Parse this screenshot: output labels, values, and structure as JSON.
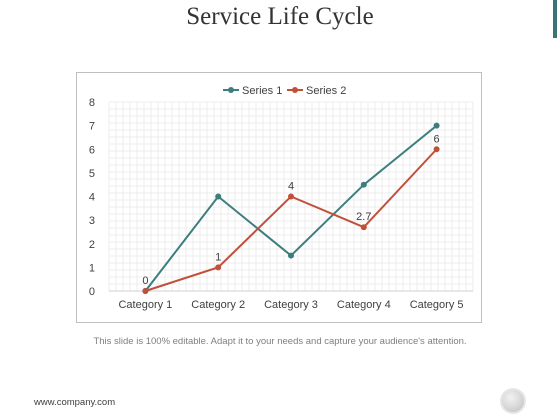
{
  "slide": {
    "title": "Service Life Cycle",
    "caption": "This slide is 100% editable. Adapt it to your needs and capture your audience's attention.",
    "footer": "www.company.com",
    "accent_color": "#3d7278"
  },
  "chart_data": {
    "type": "line",
    "categories": [
      "Category 1",
      "Category 2",
      "Category 3",
      "Category 4",
      "Category 5"
    ],
    "series": [
      {
        "name": "Series 1",
        "color": "#3d7d7d",
        "values": [
          0,
          4,
          1.5,
          4.5,
          7
        ],
        "labels": [
          "",
          "",
          "",
          "",
          ""
        ]
      },
      {
        "name": "Series 2",
        "color": "#c0503a",
        "values": [
          0,
          1,
          4,
          2.7,
          6
        ],
        "labels": [
          "0",
          "1",
          "4",
          "2.7",
          "6"
        ]
      }
    ],
    "yticks": [
      "0",
      "1",
      "2",
      "3",
      "4",
      "5",
      "6",
      "7",
      "8"
    ],
    "ylim": [
      0,
      8
    ],
    "grid": true,
    "legend": "top-center",
    "xlabel": "",
    "ylabel": ""
  }
}
